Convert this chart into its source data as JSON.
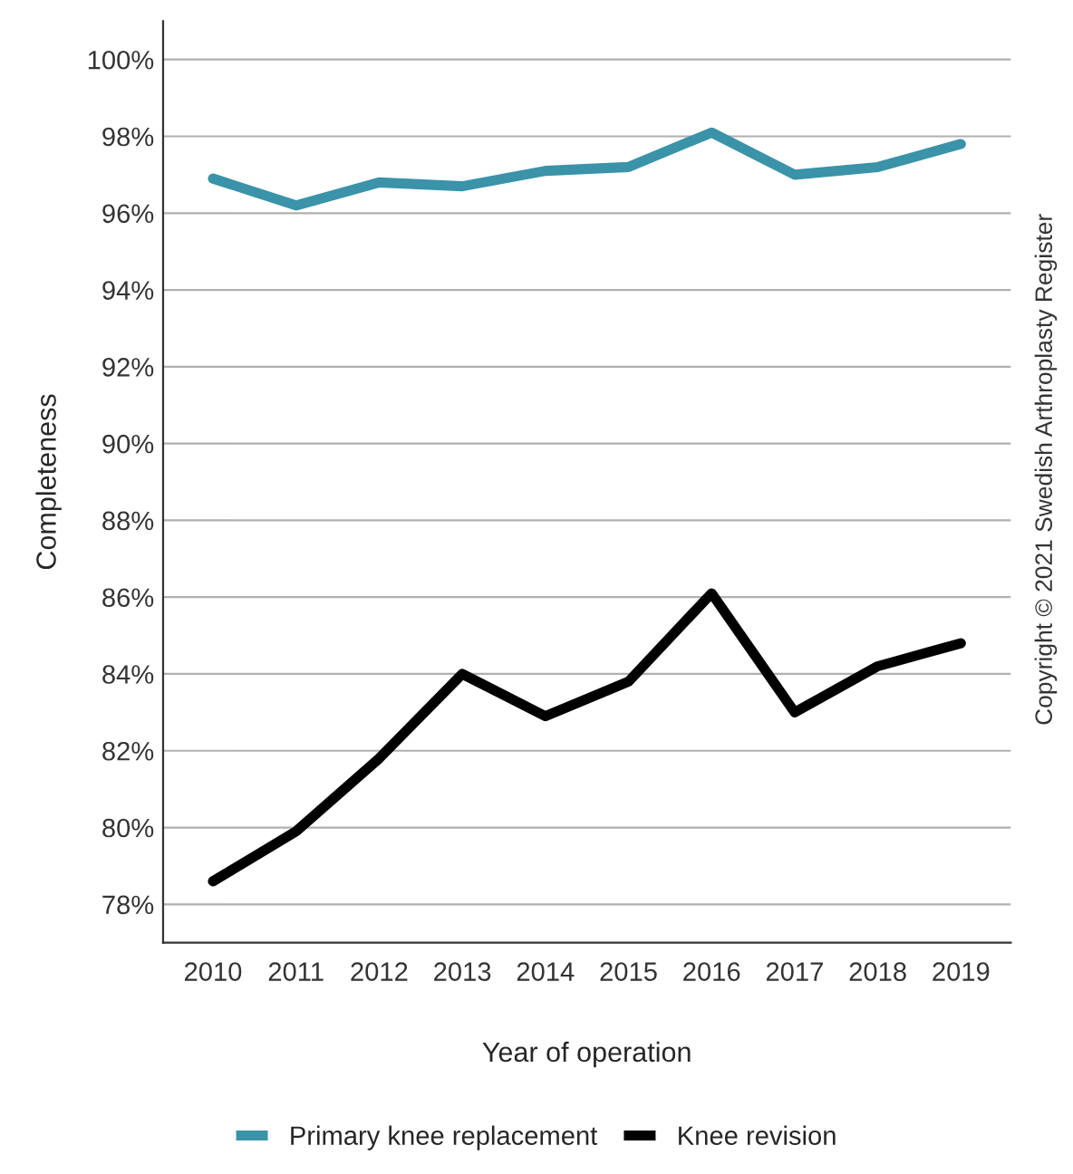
{
  "chart_data": {
    "type": "line",
    "xlabel": "Year of operation",
    "ylabel": "Completeness",
    "categories": [
      "2010",
      "2011",
      "2012",
      "2013",
      "2014",
      "2015",
      "2016",
      "2017",
      "2018",
      "2019"
    ],
    "series": [
      {
        "name": "Primary knee replacement",
        "color": "#3a93a8",
        "values": [
          96.9,
          96.2,
          96.8,
          96.7,
          97.1,
          97.2,
          98.1,
          97.0,
          97.2,
          97.8
        ]
      },
      {
        "name": "Knee revision",
        "color": "#000000",
        "values": [
          78.6,
          79.9,
          81.8,
          84.0,
          82.9,
          83.8,
          86.1,
          83.0,
          84.2,
          84.8
        ]
      }
    ],
    "ylim": [
      77,
      101
    ],
    "yticks": [
      {
        "value": 78,
        "label": "78%"
      },
      {
        "value": 80,
        "label": "80%"
      },
      {
        "value": 82,
        "label": "82%"
      },
      {
        "value": 84,
        "label": "84%"
      },
      {
        "value": 86,
        "label": "86%"
      },
      {
        "value": 88,
        "label": "88%"
      },
      {
        "value": 90,
        "label": "90%"
      },
      {
        "value": 92,
        "label": "92%"
      },
      {
        "value": 94,
        "label": "94%"
      },
      {
        "value": 96,
        "label": "96%"
      },
      {
        "value": 98,
        "label": "98%"
      },
      {
        "value": 100,
        "label": "100%"
      }
    ],
    "grid": "y",
    "legend": "bottom",
    "marker": "none",
    "line_style": "solid",
    "annotations": [
      "Copyright © 2021 Swedish Arthroplasty Register"
    ]
  }
}
